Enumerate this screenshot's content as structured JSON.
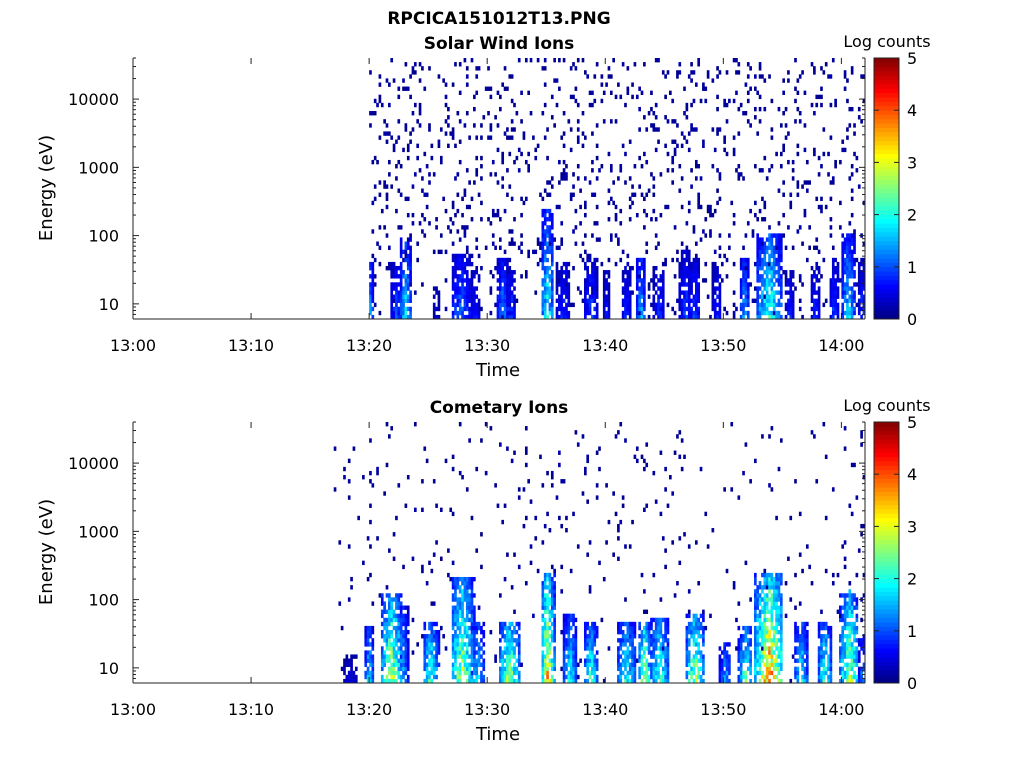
{
  "figure": {
    "title": "RPCICA151012T13.PNG"
  },
  "chart_data": [
    {
      "type": "heatmap",
      "title": "Solar Wind Ions",
      "xlabel": "Time",
      "ylabel": "Energy (eV)",
      "x_ticks": [
        "13:00",
        "13:10",
        "13:20",
        "13:30",
        "13:40",
        "13:50",
        "14:00"
      ],
      "x_range_minutes": [
        0,
        62
      ],
      "y_scale": "log",
      "y_ticks": [
        "10",
        "100",
        "1000",
        "10000"
      ],
      "y_range": [
        6,
        40000
      ],
      "colorbar": {
        "label": "Log counts",
        "ticks": [
          "0",
          "1",
          "2",
          "3",
          "4",
          "5"
        ],
        "range": [
          0,
          5
        ],
        "colormap": "jet"
      },
      "bursts": [
        {
          "t": 20.0,
          "w": 0.4,
          "emax": 45,
          "peak": 1.6
        },
        {
          "t": 22.3,
          "w": 0.5,
          "emax": 40,
          "peak": 1.0
        },
        {
          "t": 23.1,
          "w": 0.5,
          "emax": 90,
          "peak": 1.8
        },
        {
          "t": 25.6,
          "w": 0.3,
          "emax": 18,
          "peak": 0.5
        },
        {
          "t": 27.8,
          "w": 0.9,
          "emax": 55,
          "peak": 1.2
        },
        {
          "t": 29.0,
          "w": 0.4,
          "emax": 30,
          "peak": 0.8
        },
        {
          "t": 31.3,
          "w": 0.6,
          "emax": 45,
          "peak": 1.3
        },
        {
          "t": 32.0,
          "w": 0.4,
          "emax": 30,
          "peak": 1.0
        },
        {
          "t": 35.1,
          "w": 0.6,
          "emax": 230,
          "peak": 1.9
        },
        {
          "t": 36.5,
          "w": 0.6,
          "emax": 40,
          "peak": 0.9
        },
        {
          "t": 38.8,
          "w": 0.6,
          "emax": 45,
          "peak": 1.0
        },
        {
          "t": 40.1,
          "w": 0.3,
          "emax": 30,
          "peak": 0.7
        },
        {
          "t": 41.8,
          "w": 0.4,
          "emax": 40,
          "peak": 0.8
        },
        {
          "t": 43.0,
          "w": 0.4,
          "emax": 45,
          "peak": 1.7
        },
        {
          "t": 44.6,
          "w": 0.5,
          "emax": 35,
          "peak": 0.9
        },
        {
          "t": 46.8,
          "w": 0.5,
          "emax": 60,
          "peak": 1.0
        },
        {
          "t": 47.6,
          "w": 0.5,
          "emax": 45,
          "peak": 1.0
        },
        {
          "t": 49.5,
          "w": 0.4,
          "emax": 40,
          "peak": 0.8
        },
        {
          "t": 51.8,
          "w": 0.4,
          "emax": 45,
          "peak": 1.6
        },
        {
          "t": 53.9,
          "w": 1.1,
          "emax": 110,
          "peak": 2.2
        },
        {
          "t": 55.6,
          "w": 0.4,
          "emax": 30,
          "peak": 0.9
        },
        {
          "t": 57.8,
          "w": 0.4,
          "emax": 40,
          "peak": 0.9
        },
        {
          "t": 59.4,
          "w": 0.4,
          "emax": 45,
          "peak": 1.0
        },
        {
          "t": 60.6,
          "w": 0.6,
          "emax": 110,
          "peak": 1.7
        },
        {
          "t": 61.8,
          "w": 0.3,
          "emax": 45,
          "peak": 1.0
        }
      ],
      "scatter_density": 0.09,
      "scatter_start_min": 20
    },
    {
      "type": "heatmap",
      "title": "Cometary Ions",
      "xlabel": "Time",
      "ylabel": "Energy (eV)",
      "x_ticks": [
        "13:00",
        "13:10",
        "13:20",
        "13:30",
        "13:40",
        "13:50",
        "14:00"
      ],
      "x_range_minutes": [
        0,
        62
      ],
      "y_scale": "log",
      "y_ticks": [
        "10",
        "100",
        "1000",
        "10000"
      ],
      "y_range": [
        6,
        40000
      ],
      "colorbar": {
        "label": "Log counts",
        "ticks": [
          "0",
          "1",
          "2",
          "3",
          "4",
          "5"
        ],
        "range": [
          0,
          5
        ],
        "colormap": "jet"
      },
      "bursts": [
        {
          "t": 18.4,
          "w": 0.6,
          "emax": 15,
          "peak": 0.5
        },
        {
          "t": 20.0,
          "w": 0.4,
          "emax": 40,
          "peak": 1.8
        },
        {
          "t": 21.9,
          "w": 0.9,
          "emax": 130,
          "peak": 2.9
        },
        {
          "t": 22.9,
          "w": 0.4,
          "emax": 80,
          "peak": 1.5
        },
        {
          "t": 25.2,
          "w": 0.7,
          "emax": 50,
          "peak": 2.3
        },
        {
          "t": 27.9,
          "w": 1.0,
          "emax": 220,
          "peak": 2.8
        },
        {
          "t": 29.2,
          "w": 0.6,
          "emax": 50,
          "peak": 1.8
        },
        {
          "t": 31.9,
          "w": 0.9,
          "emax": 50,
          "peak": 2.8
        },
        {
          "t": 35.1,
          "w": 0.6,
          "emax": 240,
          "peak": 3.3
        },
        {
          "t": 37.0,
          "w": 0.6,
          "emax": 60,
          "peak": 2.0
        },
        {
          "t": 38.8,
          "w": 0.6,
          "emax": 50,
          "peak": 2.2
        },
        {
          "t": 41.8,
          "w": 0.8,
          "emax": 45,
          "peak": 2.2
        },
        {
          "t": 43.3,
          "w": 0.5,
          "emax": 45,
          "peak": 3.0
        },
        {
          "t": 44.6,
          "w": 0.8,
          "emax": 55,
          "peak": 2.4
        },
        {
          "t": 47.6,
          "w": 0.8,
          "emax": 65,
          "peak": 2.8
        },
        {
          "t": 50.2,
          "w": 0.5,
          "emax": 25,
          "peak": 1.6
        },
        {
          "t": 51.9,
          "w": 0.6,
          "emax": 40,
          "peak": 2.3
        },
        {
          "t": 53.9,
          "w": 1.2,
          "emax": 230,
          "peak": 3.8
        },
        {
          "t": 56.6,
          "w": 0.6,
          "emax": 50,
          "peak": 2.0
        },
        {
          "t": 58.6,
          "w": 0.6,
          "emax": 45,
          "peak": 2.3
        },
        {
          "t": 60.7,
          "w": 0.8,
          "emax": 150,
          "peak": 2.8
        },
        {
          "t": 61.8,
          "w": 0.3,
          "emax": 30,
          "peak": 1.5
        }
      ],
      "scatter_density": 0.025,
      "scatter_start_min": 17
    }
  ]
}
